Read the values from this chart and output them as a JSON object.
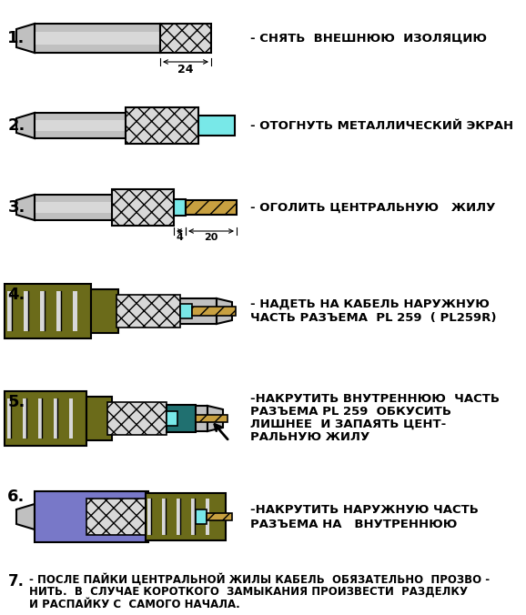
{
  "bg": "#ffffff",
  "gray": "#c0c0c0",
  "gray2": "#d8d8d8",
  "gray3": "#a8a8a8",
  "olive": "#6b6b1a",
  "olive2": "#808020",
  "cyan": "#78e8e8",
  "teal": "#207070",
  "blue": "#7878c8",
  "gold": "#c8a040",
  "black": "#000000",
  "step1_label": "1.",
  "step2_label": "2.",
  "step3_label": "3.",
  "step4_label": "4.",
  "step5_label": "5.",
  "step6_label": "6.",
  "step7_label": "7.",
  "step1_text": "- СНЯТЬ  ВНЕШНЮЮ  ИЗОЛЯЦИЮ",
  "step2_text": "- ОТОГНУТЬ МЕТАЛЛИЧЕСКИЙ ЭКРАН",
  "step3_text": "- ОГОЛИТЬ ЦЕНТРАЛЬНУЮ   ЖИЛУ",
  "step4_text1": "- НАДЕТЬ НА КАБЕЛЬ НАРУЖНУЮ",
  "step4_text2": "ЧАСТЬ РАЗЪЕМА  PL 259  ( PL259R)",
  "step5_text1": "-НАКРУТИТЬ ВНУТРЕННЮЮ  ЧАСТЬ",
  "step5_text2": "РАЗЪЕМА PL 259  ОБКУСИТЬ",
  "step5_text3": "ЛИШНЕЕ  И ЗАПАЯТЬ ЦЕНТ-",
  "step5_text4": "РАЛЬНУЮ ЖИЛУ",
  "step6_text1": "-НАКРУТИТЬ НАРУЖНУЮ ЧАСТЬ",
  "step6_text2": "РАЗЪЕМА НА   ВНУТРЕННЮЮ",
  "step7_l1": "- ПОСЛЕ ПАЙКИ ЦЕНТРАЛЬНОЙ ЖИЛЫ КАБЕЛЬ  ОБЯЗАТЕЛЬНО  ПРОЗВО -",
  "step7_l2": "НИТЬ.  В  СЛУЧАЕ КОРОТКОГО  ЗАМЫКАНИЯ ПРОИЗВЕСТИ  РАЗДЕЛКУ",
  "step7_l3": "И РАСПАЙКУ С  САМОГО НАЧАЛА.",
  "dim24": "24",
  "dim4": "4",
  "dim20": "20"
}
